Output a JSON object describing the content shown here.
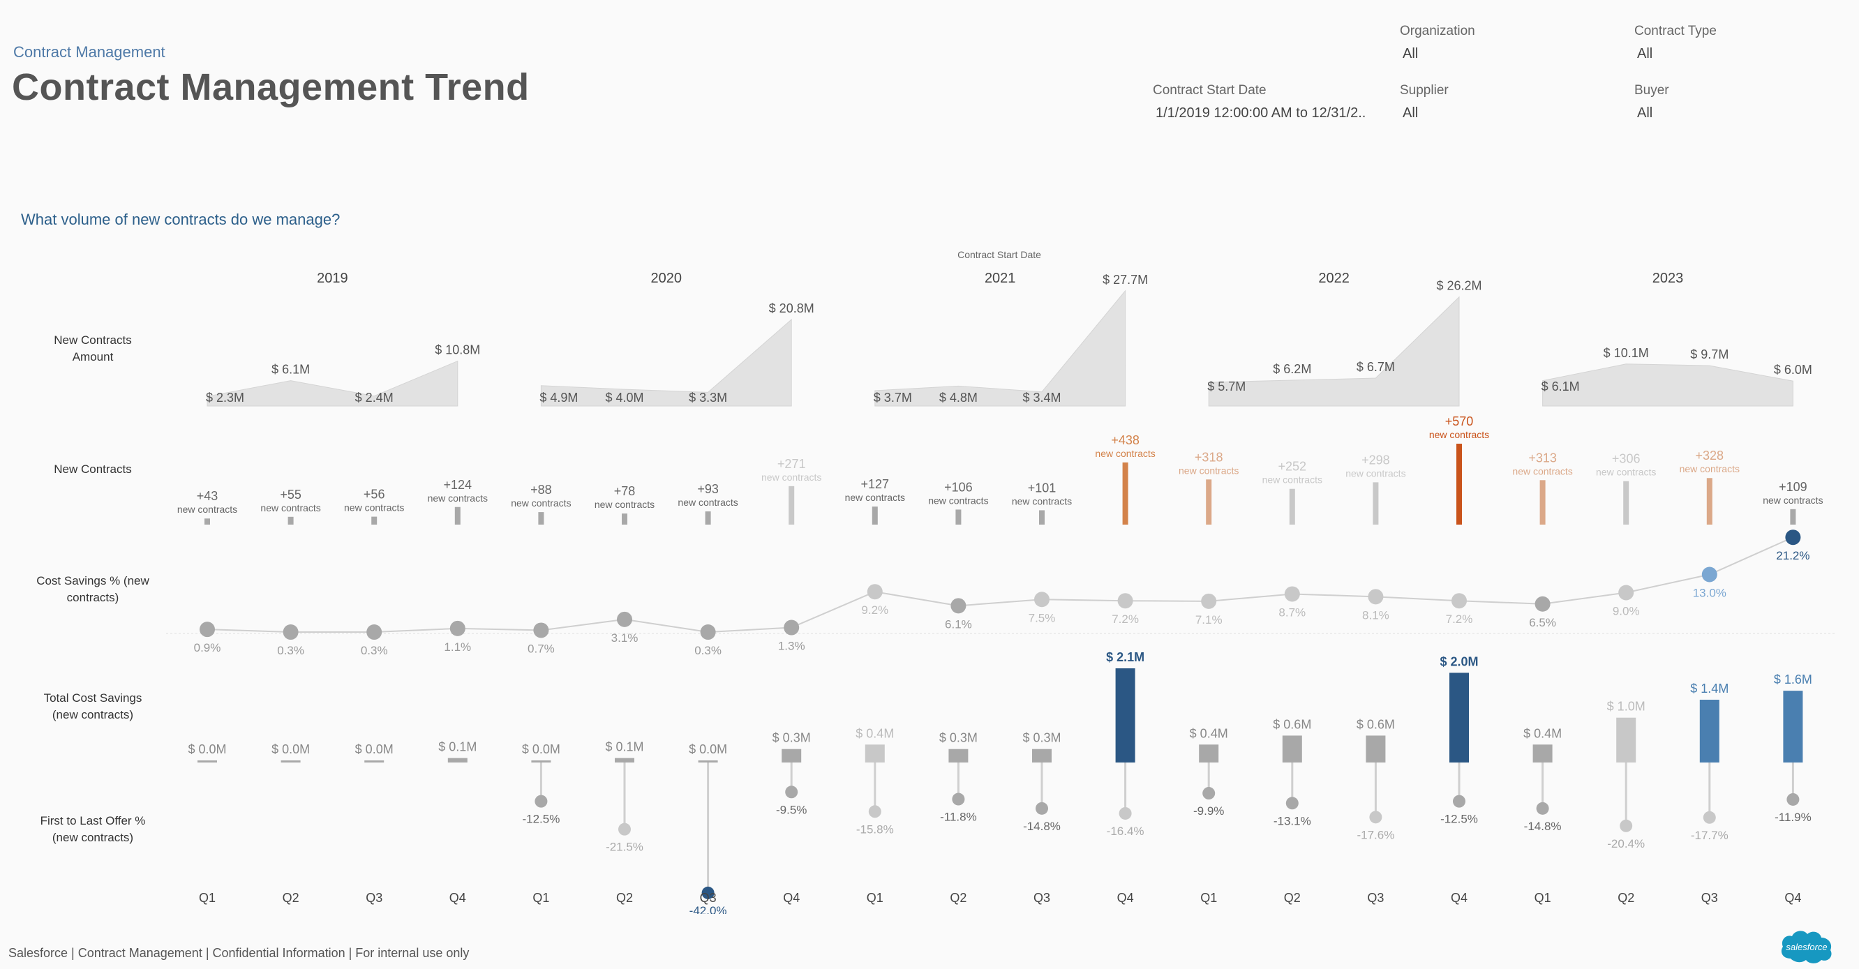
{
  "header": {
    "breadcrumb": "Contract Management",
    "title": "Contract Management Trend"
  },
  "filters": {
    "organization": {
      "label": "Organization",
      "value": "All"
    },
    "contract_type": {
      "label": "Contract Type",
      "value": "All"
    },
    "contract_start_date": {
      "label": "Contract Start Date",
      "value": "1/1/2019 12:00:00 AM to 12/31/2.."
    },
    "supplier": {
      "label": "Supplier",
      "value": "All"
    },
    "buyer": {
      "label": "Buyer",
      "value": "All"
    }
  },
  "question": "What volume of new contracts do we manage?",
  "footer": "Salesforce | Contract Management | Confidential Information | For internal use only",
  "logo_text": "salesforce",
  "colors": {
    "gray": "#a8a8a8",
    "light_gray": "#c8c8c8",
    "area_fill": "#e2e2e2",
    "orange_dark": "#c9531b",
    "orange": "#d3824a",
    "orange_light": "#dba888",
    "blue_dark": "#2b5784",
    "blue": "#4a7fb0",
    "blue_light": "#7ba7d2",
    "salesforce_blue": "#1798c1"
  },
  "chart_data": {
    "type": "multi-row",
    "column_header": "Contract Start Date",
    "years": [
      "2019",
      "2020",
      "2021",
      "2022",
      "2023"
    ],
    "quarters": [
      "Q1",
      "Q2",
      "Q3",
      "Q4",
      "Q1",
      "Q2",
      "Q3",
      "Q4",
      "Q1",
      "Q2",
      "Q3",
      "Q4",
      "Q1",
      "Q2",
      "Q3",
      "Q4",
      "Q1",
      "Q2",
      "Q3",
      "Q4"
    ],
    "rows": [
      {
        "name": "New Contracts Amount",
        "type": "area",
        "unit": "$M",
        "values": [
          2.3,
          6.1,
          2.4,
          10.8,
          4.9,
          4.0,
          3.3,
          20.8,
          3.7,
          4.8,
          3.4,
          27.7,
          5.7,
          6.2,
          6.7,
          26.2,
          6.1,
          10.1,
          9.7,
          6.0
        ],
        "labels": [
          "$ 2.3M",
          "$ 6.1M",
          "$ 2.4M",
          "$ 10.8M",
          "$ 4.9M",
          "$ 4.0M",
          "$ 3.3M",
          "$ 20.8M",
          "$ 3.7M",
          "$ 4.8M",
          "$ 3.4M",
          "$ 27.7M",
          "$ 5.7M",
          "$ 6.2M",
          "$ 6.7M",
          "$ 26.2M",
          "$ 6.1M",
          "$ 10.1M",
          "$ 9.7M",
          "$ 6.0M"
        ]
      },
      {
        "name": "New Contracts",
        "type": "bar",
        "values": [
          43,
          55,
          56,
          124,
          88,
          78,
          93,
          271,
          127,
          106,
          101,
          438,
          318,
          252,
          298,
          570,
          313,
          306,
          328,
          109
        ],
        "labels": [
          "+43",
          "+55",
          "+56",
          "+124",
          "+88",
          "+78",
          "+93",
          "+271",
          "+127",
          "+106",
          "+101",
          "+438",
          "+318",
          "+252",
          "+298",
          "+570",
          "+313",
          "+306",
          "+328",
          "+109"
        ],
        "sublabel": "new contracts",
        "colors": [
          "gray",
          "gray",
          "gray",
          "gray",
          "gray",
          "gray",
          "gray",
          "light_gray",
          "gray",
          "gray",
          "gray",
          "orange",
          "orange_light",
          "light_gray",
          "light_gray",
          "orange_dark",
          "orange_light",
          "light_gray",
          "orange_light",
          "gray"
        ]
      },
      {
        "name": "Cost Savings % (new contracts)",
        "type": "line",
        "unit": "%",
        "values": [
          0.9,
          0.3,
          0.3,
          1.1,
          0.7,
          3.1,
          0.3,
          1.3,
          9.2,
          6.1,
          7.5,
          7.2,
          7.1,
          8.7,
          8.1,
          7.2,
          6.5,
          9.0,
          13.0,
          21.2
        ],
        "labels": [
          "0.9%",
          "0.3%",
          "0.3%",
          "1.1%",
          "0.7%",
          "3.1%",
          "0.3%",
          "1.3%",
          "9.2%",
          "6.1%",
          "7.5%",
          "7.2%",
          "7.1%",
          "8.7%",
          "8.1%",
          "7.2%",
          "6.5%",
          "9.0%",
          "13.0%",
          "21.2%"
        ],
        "colors": [
          "gray",
          "gray",
          "gray",
          "gray",
          "gray",
          "gray",
          "gray",
          "gray",
          "light_gray",
          "gray",
          "light_gray",
          "light_gray",
          "light_gray",
          "light_gray",
          "light_gray",
          "light_gray",
          "gray",
          "light_gray",
          "blue_light",
          "blue_dark"
        ]
      },
      {
        "name": "Total Cost Savings (new contracts)",
        "type": "bar",
        "unit": "$M",
        "values": [
          0.0,
          0.0,
          0.0,
          0.1,
          0.0,
          0.1,
          0.0,
          0.3,
          0.4,
          0.3,
          0.3,
          2.1,
          0.4,
          0.6,
          0.6,
          2.0,
          0.4,
          1.0,
          1.4,
          1.6
        ],
        "labels": [
          "$ 0.0M",
          "$ 0.0M",
          "$ 0.0M",
          "$ 0.1M",
          "$ 0.0M",
          "$ 0.1M",
          "$ 0.0M",
          "$ 0.3M",
          "$ 0.4M",
          "$ 0.3M",
          "$ 0.3M",
          "$ 2.1M",
          "$ 0.4M",
          "$ 0.6M",
          "$ 0.6M",
          "$ 2.0M",
          "$ 0.4M",
          "$ 1.0M",
          "$ 1.4M",
          "$ 1.6M"
        ],
        "colors": [
          "gray",
          "gray",
          "gray",
          "gray",
          "gray",
          "gray",
          "gray",
          "gray",
          "light_gray",
          "gray",
          "gray",
          "blue_dark",
          "gray",
          "gray",
          "gray",
          "blue_dark",
          "gray",
          "light_gray",
          "blue",
          "blue"
        ]
      },
      {
        "name": "First to Last Offer % (new contracts)",
        "type": "lollipop",
        "unit": "%",
        "values": [
          null,
          null,
          null,
          null,
          -12.5,
          -21.5,
          -42.0,
          -9.5,
          -15.8,
          -11.8,
          -14.8,
          -16.4,
          -9.9,
          -13.1,
          -17.6,
          -12.5,
          -14.8,
          -20.4,
          -17.7,
          -11.9
        ],
        "labels": [
          "",
          "",
          "",
          "",
          "-12.5%",
          "-21.5%",
          "-42.0%",
          "-9.5%",
          "-15.8%",
          "-11.8%",
          "-14.8%",
          "-16.4%",
          "-9.9%",
          "-13.1%",
          "-17.6%",
          "-12.5%",
          "-14.8%",
          "-20.4%",
          "-17.7%",
          "-11.9%"
        ],
        "colors": [
          "gray",
          "gray",
          "gray",
          "gray",
          "gray",
          "light_gray",
          "blue_dark",
          "gray",
          "light_gray",
          "gray",
          "gray",
          "light_gray",
          "gray",
          "gray",
          "light_gray",
          "gray",
          "gray",
          "light_gray",
          "light_gray",
          "gray"
        ]
      }
    ],
    "row_labels": [
      [
        "New Contracts",
        "Amount"
      ],
      [
        "New Contracts"
      ],
      [
        "Cost Savings % (new",
        "contracts)"
      ],
      [
        "Total Cost Savings",
        "(new contracts)"
      ],
      [
        "First to Last Offer %",
        "(new contracts)"
      ]
    ]
  }
}
